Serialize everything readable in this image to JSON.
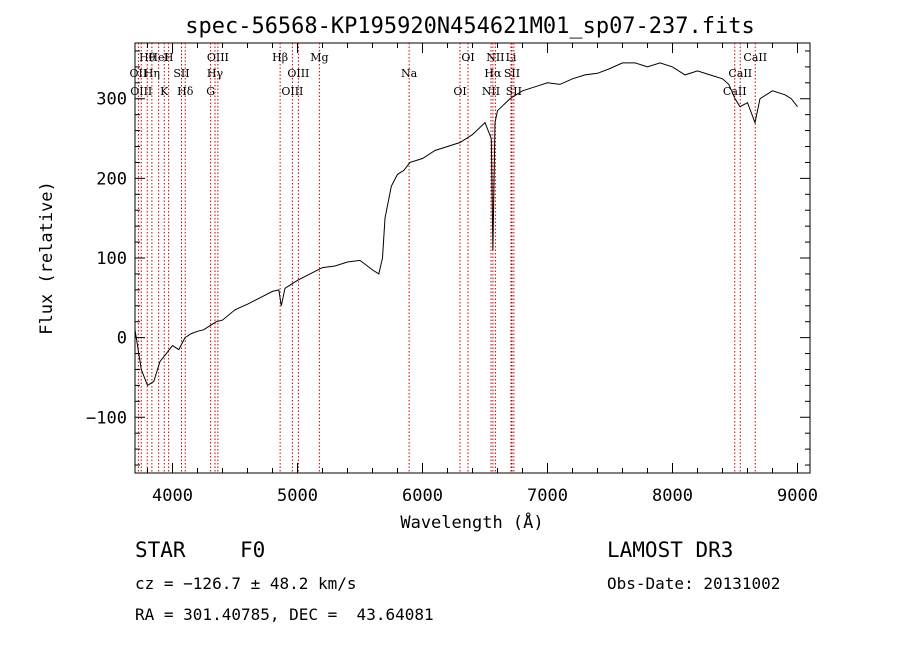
{
  "chart_data": {
    "type": "line",
    "title": "spec-56568-KP195920N454621M01_sp07-237.fits",
    "xlabel": "Wavelength (Å)",
    "ylabel": "Flux (relative)",
    "xlim": [
      3700,
      9100
    ],
    "ylim": [
      -170,
      370
    ],
    "x_ticks": [
      4000,
      5000,
      6000,
      7000,
      8000,
      9000
    ],
    "y_ticks": [
      -100,
      0,
      100,
      200,
      300
    ],
    "x_tick_labels": [
      "4000",
      "5000",
      "6000",
      "7000",
      "8000",
      "9000"
    ],
    "y_tick_labels": [
      "−100",
      "0",
      "100",
      "200",
      "300"
    ],
    "grid": false,
    "legend": "none",
    "series": [
      {
        "x": [
          3700,
          3750,
          3800,
          3850,
          3900,
          3950,
          4000,
          4050,
          4100,
          4150,
          4200,
          4250,
          4300,
          4350,
          4400,
          4500,
          4600,
          4700,
          4800,
          4850,
          4870,
          4900,
          5000,
          5100,
          5200,
          5300,
          5400,
          5500,
          5600,
          5650,
          5680,
          5700,
          5750,
          5800,
          5850,
          5900,
          6000,
          6100,
          6200,
          6300,
          6400,
          6500,
          6550,
          6563,
          6580,
          6600,
          6700,
          6800,
          6900,
          7000,
          7100,
          7200,
          7300,
          7400,
          7500,
          7600,
          7700,
          7800,
          7900,
          8000,
          8100,
          8200,
          8300,
          8400,
          8450,
          8500,
          8540,
          8600,
          8660,
          8700,
          8800,
          8900,
          8950,
          9000
        ],
        "y": [
          10,
          -40,
          -60,
          -55,
          -30,
          -20,
          -10,
          -15,
          0,
          5,
          8,
          10,
          15,
          20,
          22,
          35,
          42,
          50,
          58,
          60,
          40,
          62,
          72,
          80,
          88,
          90,
          95,
          97,
          85,
          80,
          100,
          150,
          190,
          205,
          210,
          220,
          225,
          235,
          240,
          245,
          255,
          270,
          250,
          110,
          270,
          285,
          300,
          310,
          315,
          320,
          318,
          325,
          330,
          332,
          338,
          345,
          345,
          340,
          345,
          340,
          330,
          335,
          330,
          325,
          318,
          300,
          290,
          295,
          270,
          300,
          310,
          305,
          300,
          290
        ]
      }
    ],
    "line_markers": [
      {
        "label": "Hθ",
        "x": 3798
      },
      {
        "label": "OII",
        "x": 3727
      },
      {
        "label": "OIII",
        "x": 3750
      },
      {
        "label": "HeI",
        "x": 3889
      },
      {
        "label": "Hη",
        "x": 3835
      },
      {
        "label": "K",
        "x": 3934
      },
      {
        "label": "H",
        "x": 3969
      },
      {
        "label": "SII",
        "x": 4072
      },
      {
        "label": "Hδ",
        "x": 4102
      },
      {
        "label": "OIII",
        "x": 4363
      },
      {
        "label": "Hγ",
        "x": 4340
      },
      {
        "label": "G",
        "x": 4305
      },
      {
        "label": "Hβ",
        "x": 4861
      },
      {
        "label": "OIII",
        "x": 5007
      },
      {
        "label": "OIII",
        "x": 4959
      },
      {
        "label": "Mg",
        "x": 5175
      },
      {
        "label": "Na",
        "x": 5893
      },
      {
        "label": "OI",
        "x": 6300
      },
      {
        "label": "OI",
        "x": 6364
      },
      {
        "label": "Hα",
        "x": 6563
      },
      {
        "label": "NII",
        "x": 6548
      },
      {
        "label": "NII",
        "x": 6583
      },
      {
        "label": "SII",
        "x": 6716
      },
      {
        "label": "SII",
        "x": 6731
      },
      {
        "label": "Li",
        "x": 6708
      },
      {
        "label": "CaII",
        "x": 8542
      },
      {
        "label": "CaII",
        "x": 8498
      },
      {
        "label": "CaII",
        "x": 8662
      }
    ]
  },
  "info": {
    "class": "STAR",
    "subclass": "F0",
    "survey": "LAMOST DR3",
    "cz": "cz = −126.7 ± 48.2 km/s",
    "obs_date": "Obs-Date: 20131002",
    "coords": "RA = 301.40785, DEC =  43.64081"
  },
  "colors": {
    "line": "#000000",
    "marker": "#cc0000",
    "background": "#ffffff"
  }
}
